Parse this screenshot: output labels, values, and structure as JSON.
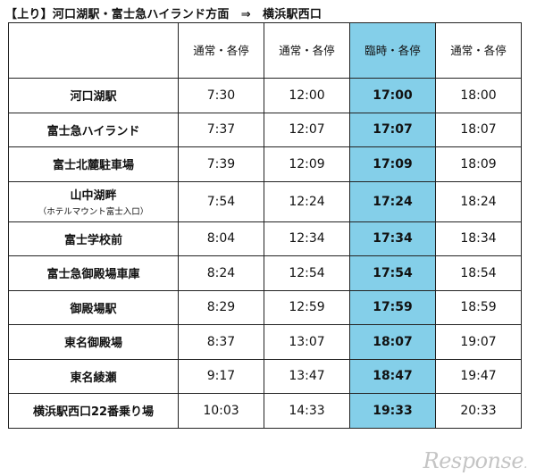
{
  "title": "【上り】河口湖駅・富士急ハイランド方面　⇒　横浜駅西口",
  "headers": [
    "通常・各停",
    "通常・各停",
    "臨時・各停",
    "通常・各停"
  ],
  "highlight_color": "#84cfe9",
  "rows": [
    {
      "stop": "河口湖駅",
      "sub": "",
      "times": [
        "7:30",
        "12:00",
        "17:00",
        "18:00"
      ]
    },
    {
      "stop": "富士急ハイランド",
      "sub": "",
      "times": [
        "7:37",
        "12:07",
        "17:07",
        "18:07"
      ]
    },
    {
      "stop": "富士北麓駐車場",
      "sub": "",
      "times": [
        "7:39",
        "12:09",
        "17:09",
        "18:09"
      ]
    },
    {
      "stop": "山中湖畔",
      "sub": "（ホテルマウント富士入口）",
      "times": [
        "7:54",
        "12:24",
        "17:24",
        "18:24"
      ]
    },
    {
      "stop": "富士学校前",
      "sub": "",
      "times": [
        "8:04",
        "12:34",
        "17:34",
        "18:34"
      ]
    },
    {
      "stop": "富士急御殿場車庫",
      "sub": "",
      "times": [
        "8:24",
        "12:54",
        "17:54",
        "18:54"
      ]
    },
    {
      "stop": "御殿場駅",
      "sub": "",
      "times": [
        "8:29",
        "12:59",
        "17:59",
        "18:59"
      ]
    },
    {
      "stop": "東名御殿場",
      "sub": "",
      "times": [
        "8:37",
        "13:07",
        "18:07",
        "19:07"
      ]
    },
    {
      "stop": "東名綾瀬",
      "sub": "",
      "times": [
        "9:17",
        "13:47",
        "18:47",
        "19:47"
      ]
    },
    {
      "stop": "横浜駅西口22番乗り場",
      "sub": "",
      "times": [
        "10:03",
        "14:33",
        "19:33",
        "20:33"
      ]
    }
  ],
  "watermark": "Response."
}
